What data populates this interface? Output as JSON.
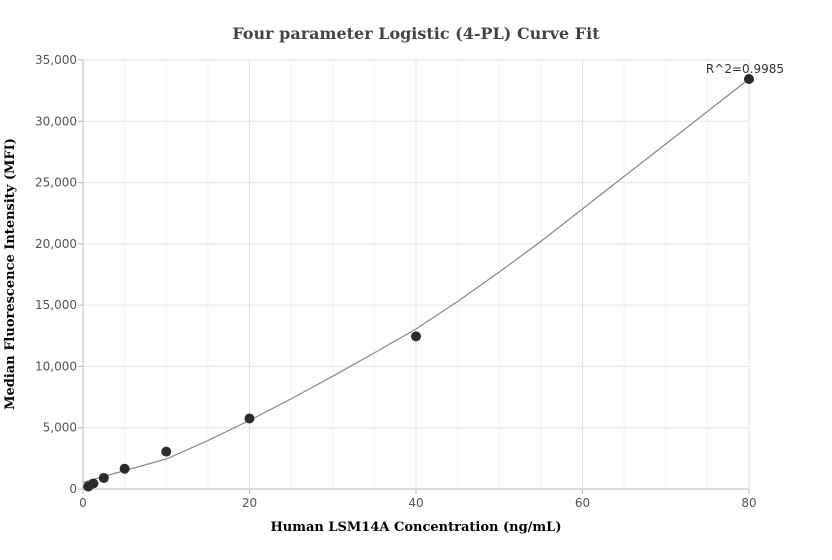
{
  "chart_data": {
    "type": "scatter",
    "title": "Four parameter Logistic (4-PL) Curve Fit",
    "xlabel": "Human LSM14A Concentration (ng/mL)",
    "ylabel": "Median Fluorescence Intensity (MFI)",
    "xlim": [
      0,
      80
    ],
    "ylim": [
      0,
      35000
    ],
    "x_ticks": [
      0,
      20,
      40,
      60,
      80
    ],
    "y_ticks": [
      0,
      5000,
      10000,
      15000,
      20000,
      25000,
      30000,
      35000
    ],
    "x_tick_labels": [
      "0",
      "20",
      "40",
      "60",
      "80"
    ],
    "y_tick_labels": [
      "0",
      "5,000",
      "10,000",
      "15,000",
      "20,000",
      "25,000",
      "30,000",
      "35,000"
    ],
    "grid": true,
    "points": {
      "x": [
        0.625,
        1.25,
        2.5,
        5,
        10,
        20,
        40,
        80
      ],
      "y": [
        200,
        450,
        900,
        1650,
        3050,
        5750,
        12450,
        33450
      ]
    },
    "fit_curve": {
      "x": [
        0,
        5,
        10,
        15,
        20,
        25,
        30,
        35,
        40,
        45,
        50,
        55,
        60,
        65,
        70,
        75,
        80
      ],
      "y": [
        550,
        1500,
        2450,
        3950,
        5600,
        7350,
        9200,
        11100,
        13050,
        15300,
        17700,
        20200,
        22850,
        25500,
        28150,
        30800,
        33450
      ]
    },
    "annotation": "R^2=0.9985",
    "colors": {
      "points": "#2b2b2b",
      "curve": "#888888",
      "grid": "#e8e8e8",
      "axis": "#bbbbbb"
    }
  }
}
